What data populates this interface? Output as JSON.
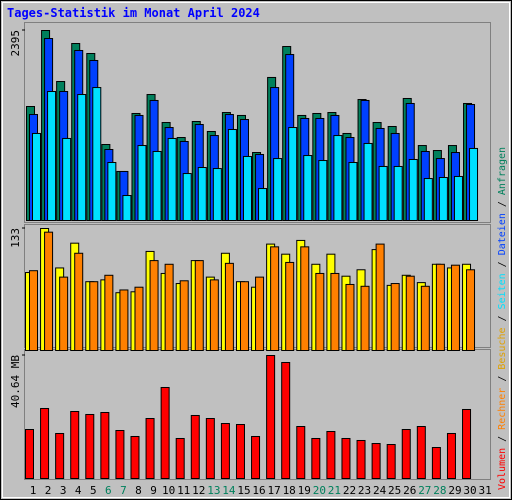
{
  "chart_data": [
    {
      "type": "bar",
      "title": "Tages-Statistik im Monat April 2024",
      "ylim": [
        0,
        2395
      ],
      "yticks": [
        2395
      ],
      "series": [
        {
          "name": "Anfragen",
          "color": "#00805c",
          "values": [
            1437,
            2395,
            1752,
            2231,
            2105,
            958,
            618,
            1349,
            1588,
            1235,
            1046,
            1248,
            1122,
            1361,
            1324,
            857,
            1803,
            2193,
            1324,
            1349,
            1361,
            1097,
            1525,
            1235,
            1185,
            1538,
            945,
            882,
            945,
            1475,
            null
          ]
        },
        {
          "name": "Dateien",
          "color": "#0040ff",
          "values": [
            1336,
            2294,
            1626,
            2143,
            2017,
            895,
            618,
            1324,
            1513,
            1172,
            996,
            1210,
            1071,
            1336,
            1273,
            832,
            1676,
            2092,
            1286,
            1286,
            1324,
            1046,
            1513,
            1160,
            1097,
            1475,
            870,
            781,
            857,
            1462,
            null
          ]
        },
        {
          "name": "Seiten",
          "color": "#00e0ff",
          "values": [
            1097,
            1626,
            1034,
            1588,
            1676,
            731,
            315,
            945,
            870,
            1034,
            592,
            668,
            655,
            1147,
            807,
            403,
            781,
            1172,
            819,
            756,
            1071,
            731,
            971,
            681,
            681,
            769,
            529,
            542,
            555,
            908,
            null
          ]
        }
      ]
    },
    {
      "type": "bar",
      "ylim": [
        0,
        133
      ],
      "yticks": [
        133
      ],
      "series": [
        {
          "name": "Besuche",
          "color": "#ffff00",
          "values": [
            85,
            133,
            90,
            117,
            75,
            77,
            63,
            64,
            108,
            84,
            73,
            98,
            80,
            106,
            75,
            69,
            116,
            105,
            120,
            94,
            105,
            81,
            88,
            110,
            71,
            82,
            74,
            94,
            90,
            94,
            null
          ]
        },
        {
          "name": "Rechner",
          "color": "#ff8000",
          "values": [
            87,
            129,
            80,
            106,
            75,
            82,
            66,
            69,
            98,
            94,
            76,
            98,
            77,
            95,
            75,
            80,
            113,
            96,
            113,
            84,
            84,
            72,
            70,
            116,
            73,
            81,
            70,
            94,
            93,
            88,
            null
          ]
        }
      ]
    },
    {
      "type": "bar",
      "ylim": [
        0,
        40.64
      ],
      "yticks": [
        {
          "value": 40.64,
          "label": "40.64 MB"
        }
      ],
      "categories": [
        "1",
        "2",
        "3",
        "4",
        "5",
        "6",
        "7",
        "8",
        "9",
        "10",
        "11",
        "12",
        "13",
        "14",
        "15",
        "16",
        "17",
        "18",
        "19",
        "20",
        "21",
        "22",
        "23",
        "24",
        "25",
        "26",
        "27",
        "28",
        "29",
        "30",
        "31"
      ],
      "category_colors": [
        "#000000",
        "#000000",
        "#000000",
        "#000000",
        "#000000",
        "#00805c",
        "#00805c",
        "#000000",
        "#000000",
        "#000000",
        "#000000",
        "#000000",
        "#00805c",
        "#00805c",
        "#000000",
        "#000000",
        "#000000",
        "#000000",
        "#000000",
        "#00805c",
        "#00805c",
        "#000000",
        "#000000",
        "#000000",
        "#000000",
        "#000000",
        "#00805c",
        "#00805c",
        "#000000",
        "#000000",
        "#000000"
      ],
      "series": [
        {
          "name": "Volumen",
          "color": "#ff0000",
          "values": [
            16.19,
            23.13,
            14.87,
            22.14,
            21.15,
            21.81,
            15.86,
            13.88,
            19.82,
            30.07,
            13.22,
            20.82,
            19.82,
            18.17,
            17.84,
            13.88,
            40.64,
            38.33,
            17.18,
            13.22,
            15.53,
            13.22,
            12.56,
            11.56,
            11.23,
            16.19,
            17.18,
            10.24,
            14.87,
            22.8,
            null
          ]
        }
      ]
    }
  ],
  "legend": {
    "separator": "/"
  }
}
